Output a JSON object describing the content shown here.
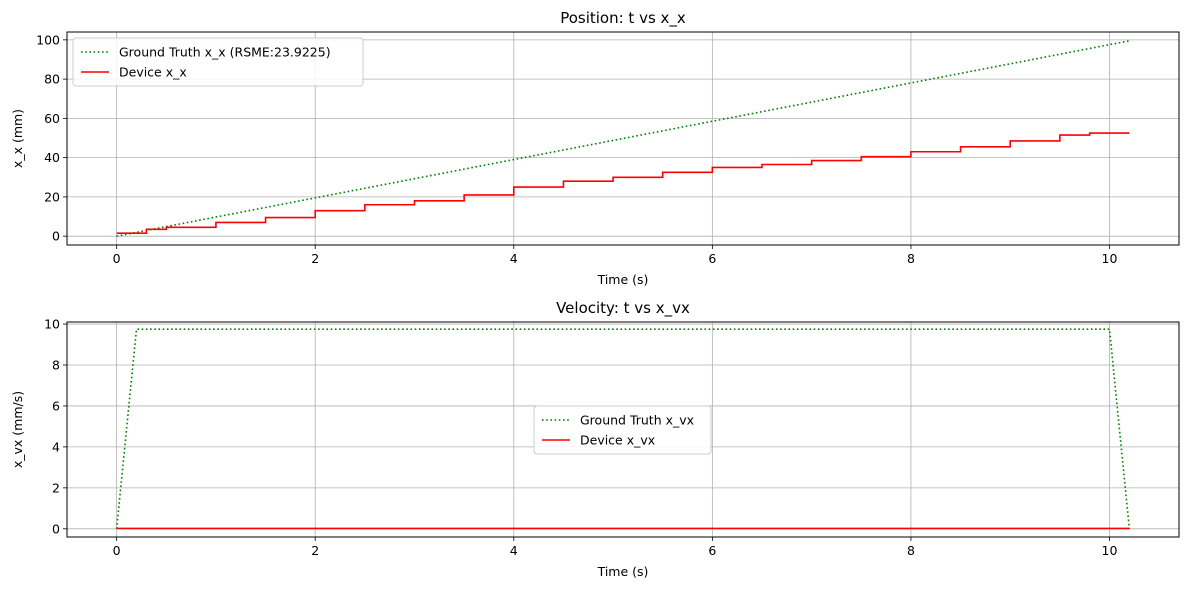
{
  "chart_data": [
    {
      "type": "line",
      "title": "Position: t vs x_x",
      "xlabel": "Time (s)",
      "ylabel": "x_x (mm)",
      "xlim": [
        -0.5,
        10.7
      ],
      "ylim": [
        -4.5,
        104
      ],
      "xticks": [
        0,
        2,
        4,
        6,
        8,
        10
      ],
      "yticks": [
        0,
        20,
        40,
        60,
        80,
        100
      ],
      "grid": true,
      "legend_position": "upper left",
      "series": [
        {
          "name": "Ground Truth x_x (RSME:23.9225)",
          "color": "#008000",
          "style": "dotted",
          "x": [
            0,
            10.2
          ],
          "y": [
            0,
            99.5
          ]
        },
        {
          "name": "Device x_x",
          "color": "#ff0000",
          "style": "solid",
          "x": [
            0,
            0.3,
            0.5,
            1,
            1.5,
            2,
            2.5,
            3,
            3.5,
            4,
            4.5,
            5,
            5.5,
            6,
            6.5,
            7,
            7.5,
            8,
            8.5,
            9,
            9.5,
            9.8,
            10.2
          ],
          "y": [
            1.5,
            3.5,
            4.5,
            7,
            9.5,
            13,
            16,
            18,
            21,
            25,
            28,
            30,
            32.5,
            35,
            36.5,
            38.5,
            40.5,
            43,
            45.5,
            48.5,
            51.5,
            52.5,
            52.5
          ]
        }
      ]
    },
    {
      "type": "line",
      "title": "Velocity: t vs x_vx",
      "xlabel": "Time (s)",
      "ylabel": "x_vx (mm/s)",
      "xlim": [
        -0.5,
        10.7
      ],
      "ylim": [
        -0.4,
        10.1
      ],
      "xticks": [
        0,
        2,
        4,
        6,
        8,
        10
      ],
      "yticks": [
        0,
        2,
        4,
        6,
        8,
        10
      ],
      "grid": true,
      "legend_position": "center",
      "series": [
        {
          "name": "Ground Truth x_vx",
          "color": "#008000",
          "style": "dotted",
          "x": [
            0,
            0.2,
            10.0,
            10.2
          ],
          "y": [
            0,
            9.75,
            9.75,
            0
          ]
        },
        {
          "name": "Device x_vx",
          "color": "#ff0000",
          "style": "solid",
          "x": [
            0,
            10.2
          ],
          "y": [
            0.02,
            0.02
          ]
        }
      ]
    }
  ]
}
